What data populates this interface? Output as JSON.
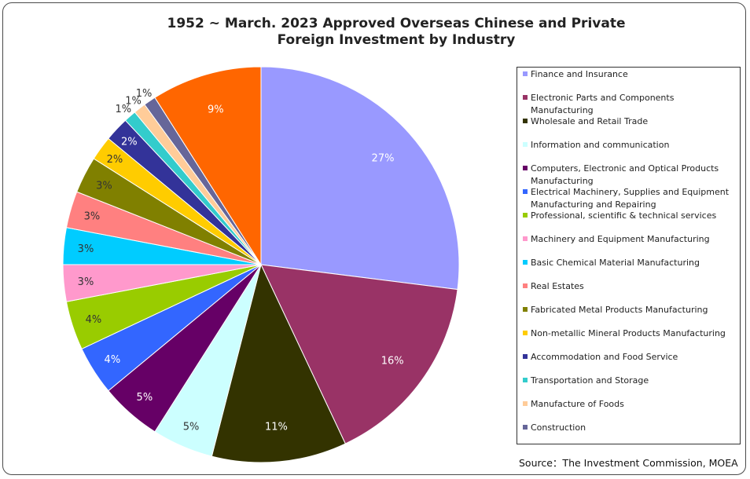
{
  "chart_data": {
    "type": "pie",
    "title": "1952 ~ March. 2023 Approved Overseas Chinese and Private Foreign Investment by Industry",
    "title_lines": [
      "1952 ~ March. 2023 Approved Overseas Chinese and Private",
      "Foreign Investment by Industry"
    ],
    "source": "Source：The Investment Commission, MOEA",
    "legend_position": "right",
    "slices": [
      {
        "label": "Finance and Insurance",
        "value": 27,
        "value_label": "27%",
        "color": "#9999ff"
      },
      {
        "label": "Electronic Parts and Components Manufacturing",
        "value": 16,
        "value_label": "16%",
        "color": "#993366"
      },
      {
        "label": "Wholesale and Retail Trade",
        "value": 11,
        "value_label": "11%",
        "color": "#333300"
      },
      {
        "label": "Information and communication",
        "value": 5,
        "value_label": "5%",
        "color": "#ccffff"
      },
      {
        "label": "Computers, Electronic and Optical Products Manufacturing",
        "value": 5,
        "value_label": "5%",
        "color": "#660066"
      },
      {
        "label": "Electrical Machinery, Supplies and Equipment Manufacturing and Repairing",
        "value": 4,
        "value_label": "4%",
        "color": "#3366ff"
      },
      {
        "label": "Professional, scientific & technical services",
        "value": 4,
        "value_label": "4%",
        "color": "#99cc00"
      },
      {
        "label": "Machinery and Equipment Manufacturing",
        "value": 3,
        "value_label": "3%",
        "color": "#ff99cc"
      },
      {
        "label": "Basic Chemical Material Manufacturing",
        "value": 3,
        "value_label": "3%",
        "color": "#00ccff"
      },
      {
        "label": "Real Estates",
        "value": 3,
        "value_label": "3%",
        "color": "#ff8080"
      },
      {
        "label": "Fabricated Metal Products Manufacturing",
        "value": 3,
        "value_label": "3%",
        "color": "#808000"
      },
      {
        "label": "Non-metallic Mineral Products Manufacturing",
        "value": 2,
        "value_label": "2%",
        "color": "#ffcc00"
      },
      {
        "label": "Accommodation and Food Service",
        "value": 2,
        "value_label": "2%",
        "color": "#333399"
      },
      {
        "label": "Transportation and Storage",
        "value": 1,
        "value_label": "1%",
        "color": "#33cccc"
      },
      {
        "label": "Manufacture of Foods",
        "value": 1,
        "value_label": "1%",
        "color": "#ffcc99"
      },
      {
        "label": "Construction",
        "value": 1,
        "value_label": "1%",
        "color": "#666699"
      },
      {
        "label": "",
        "value": 9,
        "value_label": "9%",
        "color": "#ff6600"
      }
    ]
  }
}
